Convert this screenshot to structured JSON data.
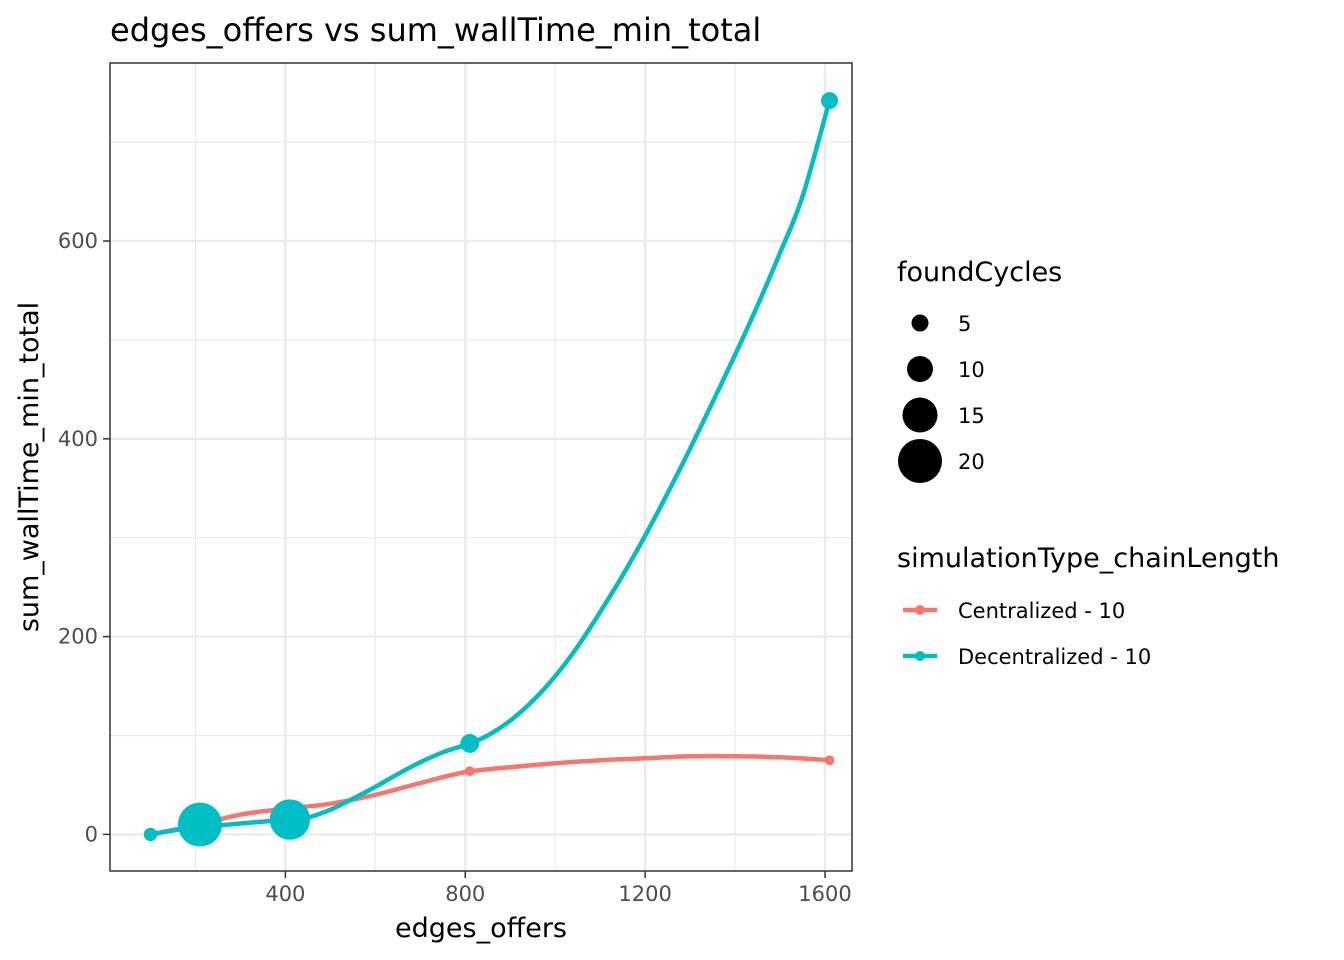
{
  "chart_data": {
    "type": "line",
    "title": "edges_offers  vs  sum_wallTime_min_total",
    "xlabel": "edges_offers",
    "ylabel": "sum_wallTime_min_total",
    "xlim": [
      10,
      1660
    ],
    "ylim": [
      -37,
      780
    ],
    "x_ticks": [
      400,
      800,
      1200,
      1600
    ],
    "x_tick_labels": [
      "400",
      "800",
      "1200",
      "1600"
    ],
    "x_minor": [
      200,
      600,
      1000,
      1400
    ],
    "y_ticks": [
      0,
      200,
      400,
      600
    ],
    "y_tick_labels": [
      "0",
      "200",
      "400",
      "600"
    ],
    "y_minor": [
      100,
      300,
      500,
      700
    ],
    "grid": true,
    "legend_position": "right",
    "size_legend": {
      "title": "foundCycles",
      "entries": [
        {
          "label": "5",
          "value": 5
        },
        {
          "label": "10",
          "value": 10
        },
        {
          "label": "15",
          "value": 15
        },
        {
          "label": "20",
          "value": 20
        }
      ]
    },
    "color_legend": {
      "title": "simulationType_chainLength",
      "entries": [
        {
          "label": "Centralized - 10",
          "color": "#F8766D"
        },
        {
          "label": "Decentralized - 10",
          "color": "#00BFC4"
        }
      ]
    },
    "series": [
      {
        "name": "Centralized - 10",
        "color": "#F8766D",
        "points": [
          {
            "x": 100,
            "y": 0,
            "foundCycles": 1
          },
          {
            "x": 210,
            "y": 10,
            "foundCycles": 1
          },
          {
            "x": 410,
            "y": 25,
            "foundCycles": 1
          },
          {
            "x": 810,
            "y": 64,
            "foundCycles": 1
          },
          {
            "x": 1610,
            "y": 75,
            "foundCycles": 1
          }
        ],
        "smooth": [
          [
            100,
            0
          ],
          [
            200,
            9
          ],
          [
            300,
            20
          ],
          [
            400,
            26
          ],
          [
            500,
            31
          ],
          [
            600,
            40
          ],
          [
            700,
            52
          ],
          [
            800,
            63
          ],
          [
            900,
            68
          ],
          [
            1000,
            72
          ],
          [
            1100,
            75
          ],
          [
            1200,
            77
          ],
          [
            1300,
            79
          ],
          [
            1400,
            79
          ],
          [
            1500,
            78
          ],
          [
            1610,
            75
          ]
        ]
      },
      {
        "name": "Decentralized - 10",
        "color": "#00BFC4",
        "points": [
          {
            "x": 100,
            "y": 0,
            "foundCycles": 3
          },
          {
            "x": 210,
            "y": 10,
            "foundCycles": 20
          },
          {
            "x": 410,
            "y": 15,
            "foundCycles": 18
          },
          {
            "x": 810,
            "y": 92,
            "foundCycles": 6
          },
          {
            "x": 1610,
            "y": 742,
            "foundCycles": 5
          }
        ],
        "smooth": [
          [
            100,
            0
          ],
          [
            150,
            4
          ],
          [
            200,
            7
          ],
          [
            250,
            9
          ],
          [
            300,
            11
          ],
          [
            350,
            13
          ],
          [
            400,
            15
          ],
          [
            450,
            17
          ],
          [
            500,
            25
          ],
          [
            550,
            36
          ],
          [
            600,
            48
          ],
          [
            650,
            61
          ],
          [
            700,
            73
          ],
          [
            750,
            83
          ],
          [
            810,
            92
          ],
          [
            850,
            100
          ],
          [
            900,
            115
          ],
          [
            950,
            135
          ],
          [
            1000,
            160
          ],
          [
            1050,
            190
          ],
          [
            1100,
            225
          ],
          [
            1150,
            262
          ],
          [
            1200,
            302
          ],
          [
            1250,
            345
          ],
          [
            1300,
            390
          ],
          [
            1350,
            437
          ],
          [
            1400,
            485
          ],
          [
            1450,
            535
          ],
          [
            1500,
            588
          ],
          [
            1550,
            645
          ],
          [
            1610,
            742
          ]
        ]
      }
    ]
  }
}
